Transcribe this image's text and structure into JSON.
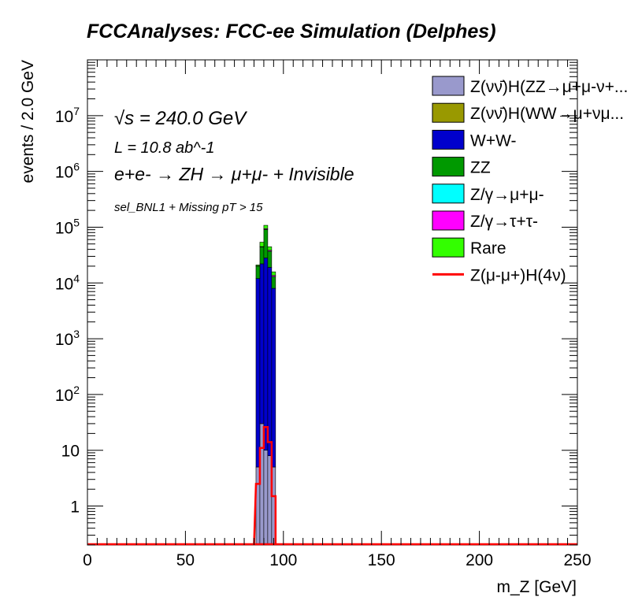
{
  "chart_data": {
    "type": "bar",
    "title": "FCCAnalyses: FCC-ee Simulation (Delphes)",
    "xlabel": "m_Z [GeV]",
    "ylabel": "events / 2.0 GeV",
    "xlim": [
      0,
      250
    ],
    "ylim": [
      0.2,
      100000000
    ],
    "yscale": "log",
    "xticks": [
      "0",
      "50",
      "100",
      "150",
      "200",
      "250"
    ],
    "yticks": [
      "1",
      "10",
      "10^2",
      "10^3",
      "10^4",
      "10^5",
      "10^6",
      "10^7"
    ],
    "annotations": {
      "sqrt_s": "√s = 240.0 GeV",
      "lumi": "L = 10.8 ab^-1",
      "process": "e+e- → ZH → μ+μ- + Invisible",
      "selection": "sel_BNL1 + Missing pT > 15"
    },
    "legend_position": "top-right",
    "bin_edges": [
      86,
      88,
      90,
      92,
      94,
      96
    ],
    "stacked": true,
    "series": [
      {
        "name": "Z(νν̄)H(ZZ→μ+μ-ν+...",
        "color": "#9999cc",
        "values": [
          5,
          30,
          10,
          8,
          5
        ]
      },
      {
        "name": "Z(νν̄)H(WW→μ+νμ...",
        "color": "#999900",
        "values": [
          0,
          0,
          0,
          0,
          0
        ]
      },
      {
        "name": "W+W-",
        "color": "#0000cc",
        "values": [
          12000,
          22000,
          28000,
          19000,
          8000
        ]
      },
      {
        "name": "ZZ",
        "color": "#009900",
        "values": [
          8000,
          22000,
          63000,
          18000,
          5000
        ]
      },
      {
        "name": "Z/γ→μ+μ-",
        "color": "#00ffff",
        "values": [
          0,
          0,
          0,
          0,
          0
        ]
      },
      {
        "name": "Z/γ→τ+τ-",
        "color": "#ff00ff",
        "values": [
          200,
          800,
          3000,
          1500,
          600
        ]
      },
      {
        "name": "Rare",
        "color": "#33ff00",
        "values": [
          800,
          9000,
          14000,
          6000,
          2200
        ]
      }
    ],
    "signal": {
      "name": "Z(μ-μ+)H(4ν)",
      "color": "#ff0000",
      "values": [
        2.5,
        11,
        26,
        14,
        1.5
      ]
    }
  }
}
